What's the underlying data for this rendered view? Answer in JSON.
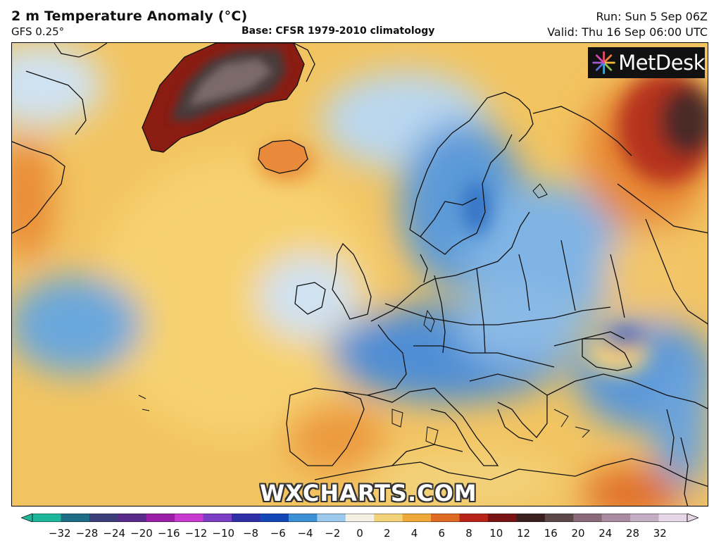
{
  "header": {
    "title": "2 m Temperature Anomaly (°C)",
    "model": "GFS 0.25°",
    "base": "Base: CFSR 1979-2010 climatology",
    "run": "Run: Sun 5 Sep 06Z",
    "valid": "Valid: Thu 16 Sep 06:00 UTC"
  },
  "map": {
    "region": "North Atlantic and Europe",
    "logo_text": "MetDesk",
    "watermark": "WXCHARTS.COM",
    "anomaly_areas": [
      {
        "place": "Greenland",
        "sign": "warm",
        "level": "very strong"
      },
      {
        "place": "Iceland",
        "sign": "warm",
        "level": "moderate"
      },
      {
        "place": "North Atlantic",
        "sign": "warm",
        "level": "weak"
      },
      {
        "place": "Scandinavia",
        "sign": "cold",
        "level": "moderate"
      },
      {
        "place": "Central Europe",
        "sign": "cold",
        "level": "moderate"
      },
      {
        "place": "Iberia",
        "sign": "warm",
        "level": "moderate"
      },
      {
        "place": "Northwest Russia",
        "sign": "warm",
        "level": "strong"
      },
      {
        "place": "North Africa",
        "sign": "warm",
        "level": "moderate"
      }
    ]
  },
  "colorbar": {
    "ticks": [
      "−32",
      "−28",
      "−24",
      "−20",
      "−16",
      "−12",
      "−10",
      "−8",
      "−6",
      "−4",
      "−2",
      "0",
      "2",
      "4",
      "6",
      "8",
      "10",
      "12",
      "16",
      "20",
      "24",
      "28",
      "32"
    ],
    "colors": [
      "#1fb79a",
      "#1f6e86",
      "#3d3f7a",
      "#5a2a8a",
      "#9b1ea6",
      "#c83ad0",
      "#7a3fc4",
      "#2f2fa8",
      "#1448b8",
      "#3d8fd6",
      "#9cc9ec",
      "#f4f1e4",
      "#f3d37a",
      "#efa93a",
      "#de6a24",
      "#b8241a",
      "#7a1414",
      "#3b2020",
      "#5c4848",
      "#8a6a78",
      "#a98ca2",
      "#c4aec4",
      "#e6d7e6"
    ],
    "unit": "°C"
  }
}
